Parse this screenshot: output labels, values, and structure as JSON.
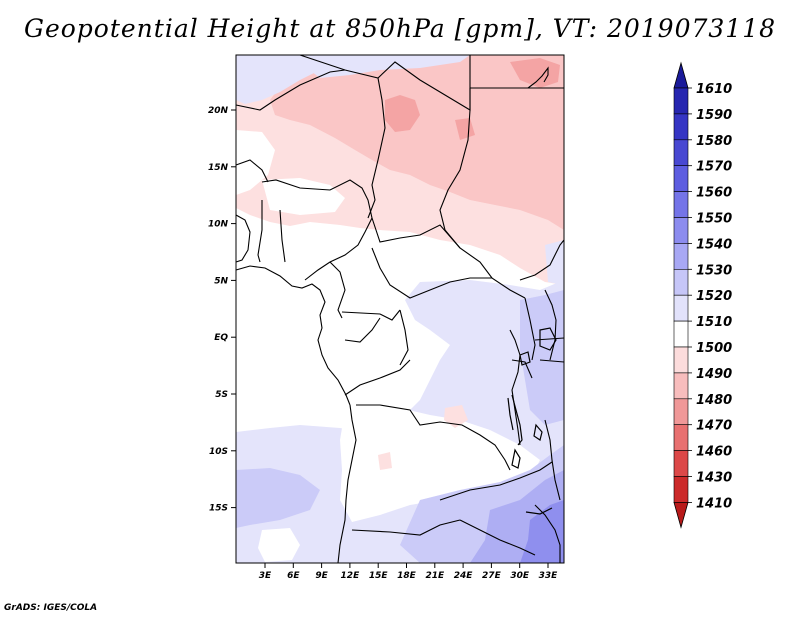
{
  "title": "Geopotential Height at 850hPa [gpm], VT: 2019073118",
  "credit": "GrADS: IGES/COLA",
  "map": {
    "lon_ticks": [
      "3E",
      "6E",
      "9E",
      "12E",
      "15E",
      "18E",
      "21E",
      "24E",
      "27E",
      "30E",
      "33E"
    ],
    "lat_ticks": [
      "20N",
      "15N",
      "10N",
      "5N",
      "EQ",
      "5S",
      "10S",
      "15S"
    ]
  },
  "colorbar": {
    "levels": [
      "1610",
      "1590",
      "1580",
      "1570",
      "1560",
      "1550",
      "1540",
      "1530",
      "1520",
      "1510",
      "1500",
      "1490",
      "1480",
      "1470",
      "1460",
      "1430",
      "1410"
    ],
    "colors": [
      "#1a1a9a",
      "#2626b0",
      "#3535c4",
      "#4848d2",
      "#5d5de0",
      "#7474e8",
      "#8c8cef",
      "#a8a8f4",
      "#c6c6f8",
      "#e2e2fb",
      "#ffffff",
      "#fcdcdc",
      "#f8bdbd",
      "#f09898",
      "#e87070",
      "#dc4848",
      "#cc2a2a",
      "#b81a1a"
    ]
  },
  "field_colors": {
    "h1500_1510": "#ffffff",
    "h1510_1520": "#e4e4fb",
    "h1520_1530": "#cbcbf8",
    "h1530_1540": "#aeaef3",
    "h1540_1550": "#8f8fee",
    "h1490_1500": "#fde0e0",
    "h1480_1490": "#fac6c6",
    "h1470_1480": "#f4a4a4"
  }
}
